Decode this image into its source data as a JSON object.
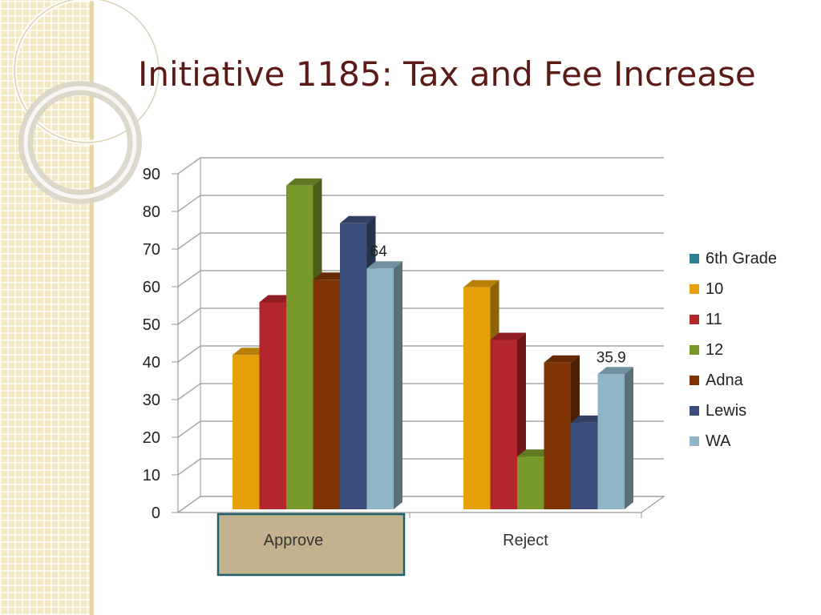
{
  "slide": {
    "title": "Initiative 1185: Tax and Fee Increase"
  },
  "colors": {
    "side_pattern": "#f3e7c4",
    "title": "#5b1a16",
    "highlight_fill": "#c2b28e",
    "highlight_border": "#1e5f6e"
  },
  "chart_data": {
    "type": "bar",
    "categories": [
      "Approve",
      "Reject"
    ],
    "series": [
      {
        "name": "6th Grade",
        "color": "#2a7f90",
        "values": [
          0,
          0
        ]
      },
      {
        "name": "10",
        "color": "#e5a00c",
        "values": [
          41,
          59
        ]
      },
      {
        "name": "11",
        "color": "#b3262c",
        "values": [
          55,
          45
        ]
      },
      {
        "name": "12",
        "color": "#78982a",
        "values": [
          86,
          14
        ]
      },
      {
        "name": "Adna",
        "color": "#7e3405",
        "values": [
          61,
          39
        ]
      },
      {
        "name": "Lewis",
        "color": "#3c4f7c",
        "values": [
          76,
          23
        ]
      },
      {
        "name": "WA",
        "color": "#8fb5c6",
        "values": [
          64,
          35.9
        ]
      }
    ],
    "data_labels": [
      {
        "series": "WA",
        "category": "Approve",
        "text": "64"
      },
      {
        "series": "WA",
        "category": "Reject",
        "text": "35.9"
      }
    ],
    "ylim": [
      0,
      90
    ],
    "yticks": [
      0,
      10,
      20,
      30,
      40,
      50,
      60,
      70,
      80,
      90
    ],
    "grid": true,
    "legend": "right",
    "highlighted_category": "Approve",
    "xlabel": "",
    "ylabel": ""
  }
}
